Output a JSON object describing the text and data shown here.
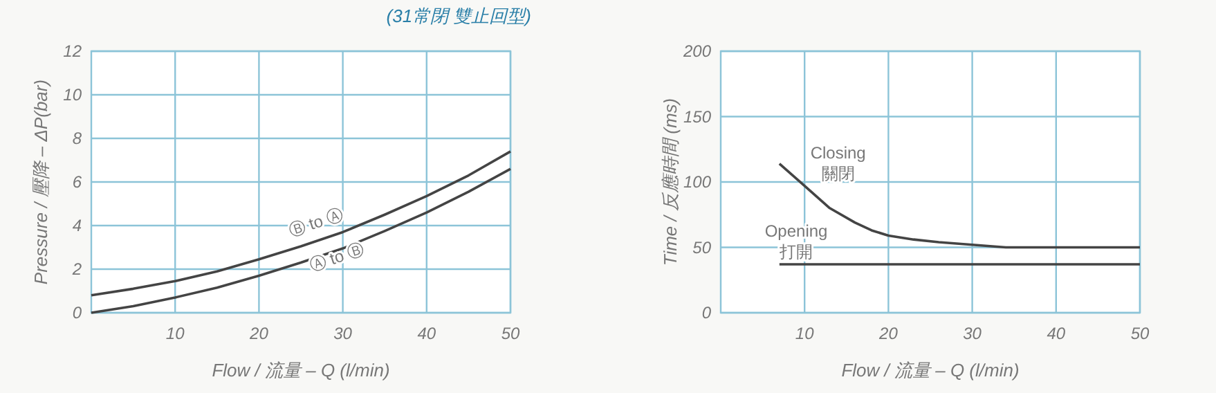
{
  "chart_data": [
    {
      "type": "line",
      "title": "(31常閉 雙止回型)",
      "xlabel": "Flow / 流量 – Q (l/min)",
      "ylabel": "Pressure / 壓降 – ΔP(bar)",
      "xlim": [
        0,
        50
      ],
      "xticks": [
        10,
        20,
        30,
        40,
        50
      ],
      "ylim": [
        0,
        12
      ],
      "yticks": [
        0,
        2,
        4,
        6,
        8,
        10,
        12
      ],
      "grid": true,
      "marker": "none",
      "line_style": "solid",
      "series": [
        {
          "name": "Ⓑ to Ⓐ",
          "color": "#444444",
          "x": [
            0,
            5,
            10,
            15,
            20,
            25,
            30,
            35,
            40,
            45,
            50
          ],
          "values": [
            0.8,
            1.1,
            1.45,
            1.9,
            2.45,
            3.05,
            3.7,
            4.5,
            5.35,
            6.3,
            7.4
          ]
        },
        {
          "name": "Ⓐ to Ⓑ",
          "color": "#444444",
          "x": [
            0,
            5,
            10,
            15,
            20,
            25,
            30,
            35,
            40,
            45,
            50
          ],
          "values": [
            0,
            0.3,
            0.7,
            1.15,
            1.7,
            2.3,
            2.95,
            3.75,
            4.6,
            5.55,
            6.6
          ]
        }
      ]
    },
    {
      "type": "line",
      "xlabel": "Flow / 流量 – Q (l/min)",
      "ylabel": "Time / 反應時間 (ms)",
      "xlim": [
        0,
        50
      ],
      "xticks": [
        10,
        20,
        30,
        40,
        50
      ],
      "ylim": [
        0,
        200
      ],
      "yticks": [
        0,
        50,
        100,
        150,
        200
      ],
      "grid": true,
      "marker": "none",
      "line_style": "solid",
      "series": [
        {
          "name": "Closing 關閉",
          "color": "#444444",
          "x": [
            7,
            10,
            13,
            16,
            18,
            20,
            23,
            26,
            30,
            34,
            40,
            50
          ],
          "values": [
            114,
            97,
            80,
            69,
            63,
            59,
            56,
            54,
            52,
            50,
            50,
            50
          ]
        },
        {
          "name": "Opening 打開",
          "color": "#444444",
          "x": [
            7,
            50
          ],
          "values": [
            37,
            37
          ]
        }
      ]
    }
  ]
}
